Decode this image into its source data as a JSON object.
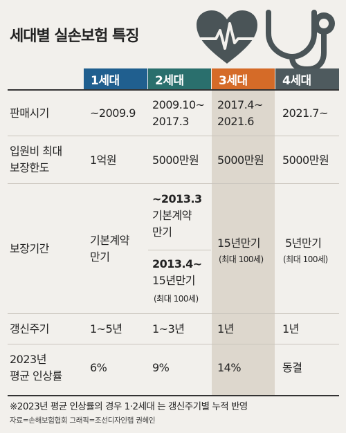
{
  "title": "세대별 실손보험 특징",
  "headers": [
    "1세대",
    "2세대",
    "3세대",
    "4세대"
  ],
  "header_colors": [
    "#205f8f",
    "#2a6f6d",
    "#d56b28",
    "#4e5a5e"
  ],
  "rows": {
    "sales_period": {
      "label": "판매시기",
      "g1": "~2009.9",
      "g2_line1": "2009.10~",
      "g2_line2": "2017.3",
      "g3_line1": "2017.4~",
      "g3_line2": "2021.6",
      "g4": "2021.7~"
    },
    "max_coverage": {
      "label_line1": "입원비 최대",
      "label_line2": "보장한도",
      "g1": "1억원",
      "g2": "5000만원",
      "g3": "5000만원",
      "g4": "5000만원"
    },
    "coverage_period": {
      "label": "보장기간",
      "g1_line1": "기본계약",
      "g1_line2": "만기",
      "g2a_line1": "~2013.3",
      "g2a_line2": "기본계약",
      "g2a_line3": "만기",
      "g2b_line1": "2013.4~",
      "g2b_line2": "15년만기",
      "g2b_note": "(최대 100세)",
      "g3": "15년만기",
      "g3_note": "(최대 100세)",
      "g4": "5년만기",
      "g4_note": "(최대 100세)"
    },
    "renewal_cycle": {
      "label": "갱신주기",
      "g1": "1~5년",
      "g2": "1~3년",
      "g3": "1년",
      "g4": "1년"
    },
    "avg_increase": {
      "label_line1": "2023년",
      "label_line2": "평균 인상률",
      "g1": "6%",
      "g2": "9%",
      "g3": "14%",
      "g4": "동결"
    }
  },
  "footnote": "※2023년 평균 인상률의 경우 1·2세대 는 갱신주기별 누적 반영",
  "source": "자료=손해보험협회   그래픽=조선디자인랩 권혜인",
  "icons": [
    "heart-pulse-icon",
    "stethoscope-icon"
  ]
}
